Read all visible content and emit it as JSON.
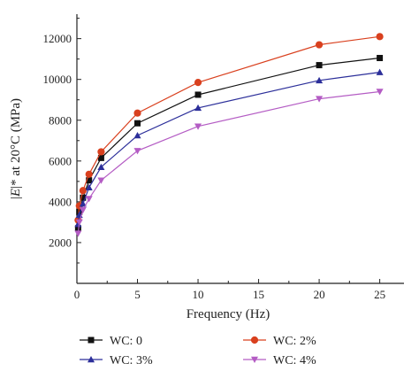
{
  "chart_data": {
    "type": "line",
    "title": "",
    "xlabel": "Frequency (Hz)",
    "ylabel_parts": {
      "prefix": "|",
      "var": "E",
      "suffix": "|* at 20°C (MPa)"
    },
    "xlim": [
      0,
      27
    ],
    "ylim": [
      0,
      13200
    ],
    "xticks": [
      0,
      5,
      10,
      15,
      20,
      25
    ],
    "yticks": [
      2000,
      4000,
      6000,
      8000,
      10000,
      12000
    ],
    "ytick_labels": [
      "2000",
      "4000",
      "6000",
      "8000",
      "10000",
      "12000"
    ],
    "grid": false,
    "legend_position": "bottom",
    "x": [
      0.1,
      0.2,
      0.5,
      1,
      2,
      5,
      10,
      20,
      25
    ],
    "series": [
      {
        "name": "WC: 0",
        "color": "#111111",
        "marker": "square",
        "values": [
          2700,
          3500,
          4200,
          5050,
          6150,
          7850,
          9250,
          10700,
          11050
        ]
      },
      {
        "name": "WC: 2%",
        "color": "#d9401e",
        "marker": "circle",
        "values": [
          3100,
          3800,
          4550,
          5350,
          6450,
          8350,
          9850,
          11700,
          12100
        ]
      },
      {
        "name": "WC: 3%",
        "color": "#2c2f9a",
        "marker": "triangle-up",
        "values": [
          2900,
          3350,
          3900,
          4700,
          5700,
          7250,
          8600,
          9950,
          10350
        ]
      },
      {
        "name": "WC: 4%",
        "color": "#b45cc4",
        "marker": "triangle-down",
        "values": [
          2450,
          3000,
          3600,
          4150,
          5050,
          6500,
          7700,
          9050,
          9400
        ]
      }
    ]
  }
}
